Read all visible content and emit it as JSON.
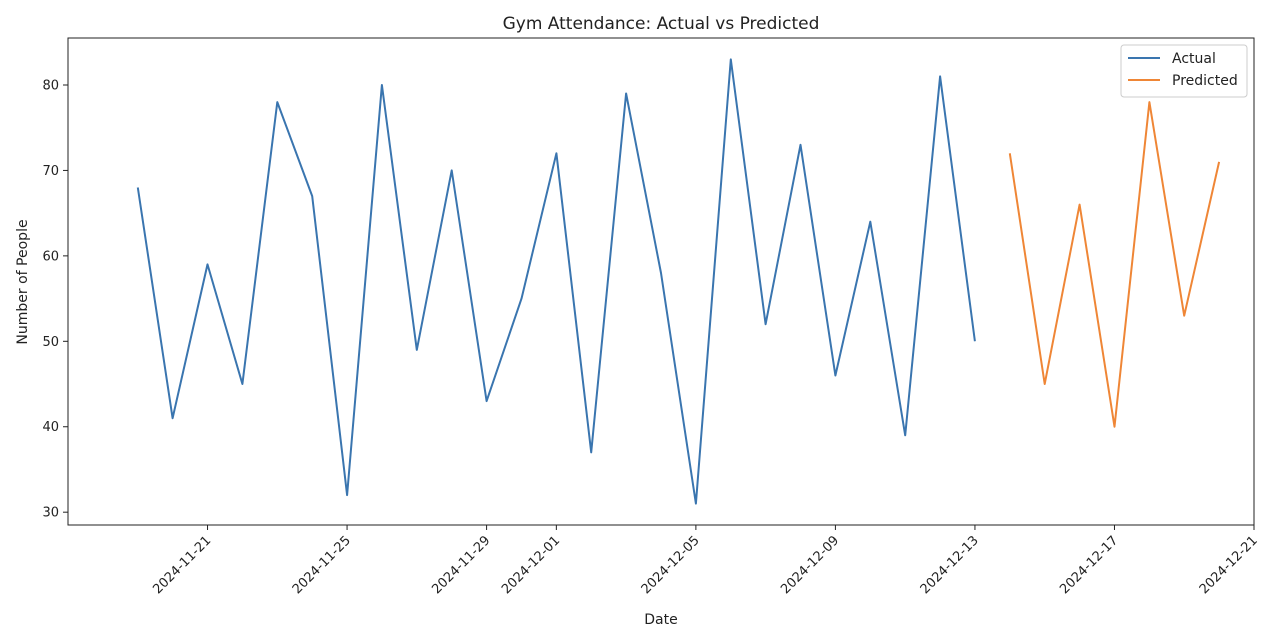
{
  "chart_data": {
    "type": "line",
    "title": "Gym Attendance: Actual vs Predicted",
    "xlabel": "Date",
    "ylabel": "Number of People",
    "x_ticks": [
      "2024-11-21",
      "2024-11-25",
      "2024-11-29",
      "2024-12-01",
      "2024-12-05",
      "2024-12-09",
      "2024-12-13",
      "2024-12-17",
      "2024-12-21"
    ],
    "y_ticks": [
      30,
      40,
      50,
      60,
      70,
      80
    ],
    "xlim": [
      "2024-11-17",
      "2024-12-21"
    ],
    "ylim": [
      28.5,
      85.5
    ],
    "legend_position": "top-right",
    "grid": false,
    "series": [
      {
        "name": "Actual",
        "color": "#3a75af",
        "x": [
          "2024-11-19",
          "2024-11-20",
          "2024-11-21",
          "2024-11-22",
          "2024-11-23",
          "2024-11-24",
          "2024-11-25",
          "2024-11-26",
          "2024-11-27",
          "2024-11-28",
          "2024-11-29",
          "2024-11-30",
          "2024-12-01",
          "2024-12-02",
          "2024-12-03",
          "2024-12-04",
          "2024-12-05",
          "2024-12-06",
          "2024-12-07",
          "2024-12-08",
          "2024-12-09",
          "2024-12-10",
          "2024-12-11",
          "2024-12-12",
          "2024-12-13"
        ],
        "values": [
          68,
          41,
          59,
          45,
          78,
          67,
          32,
          80,
          49,
          70,
          43,
          55,
          72,
          37,
          79,
          58,
          31,
          83,
          52,
          73,
          46,
          64,
          39,
          81,
          50
        ]
      },
      {
        "name": "Predicted",
        "color": "#ef8636",
        "x": [
          "2024-12-14",
          "2024-12-15",
          "2024-12-16",
          "2024-12-17",
          "2024-12-18",
          "2024-12-19",
          "2024-12-20"
        ],
        "values": [
          72,
          45,
          66,
          40,
          78,
          53,
          71
        ]
      }
    ]
  }
}
